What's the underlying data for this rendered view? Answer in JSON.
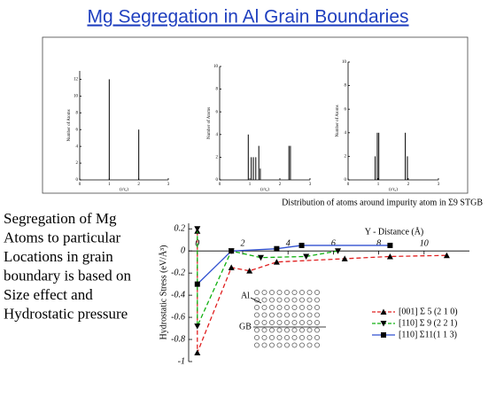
{
  "title": "Mg Segregation in Al Grain Boundaries",
  "caption": "Distribution of atoms around impurity atom in Σ9 STGB",
  "text_lines": [
    "Segregation of Mg",
    "Atoms to particular",
    "Locations in grain",
    "boundary is based on",
    "Size effect and",
    "Hydrostatic pressure"
  ],
  "inset_labels": [
    "Al",
    "GB"
  ],
  "chart_data": [
    {
      "type": "stem",
      "ylabel": "Number of Atoms",
      "xlabel": "(r/r₀)",
      "color": "#000000",
      "x": [
        1,
        2
      ],
      "values": [
        12,
        6
      ],
      "xlim": [
        0,
        3
      ],
      "xticks": [
        0,
        1,
        2,
        3
      ],
      "ylim": [
        0,
        13
      ],
      "yticks": [
        0,
        2,
        4,
        6,
        8,
        10,
        12
      ]
    },
    {
      "type": "stem",
      "ylabel": "Number of Atoms",
      "xlabel": "(r/r₀)",
      "color": "#000000",
      "x": [
        0.95,
        1.05,
        1.12,
        1.2,
        1.3,
        1.35,
        2.3,
        2.35
      ],
      "values": [
        4,
        2,
        2,
        2,
        3,
        1,
        3,
        3
      ],
      "xlim": [
        0,
        3
      ],
      "xticks": [
        0,
        1,
        2,
        3
      ],
      "ylim": [
        0,
        10
      ],
      "yticks": [
        0,
        2,
        4,
        6,
        8,
        10
      ]
    },
    {
      "type": "stem",
      "ylabel": "Number of Atoms",
      "xlabel": "(r/r₀)",
      "color": "#000000",
      "x": [
        0.9,
        0.97,
        1.02,
        1.9,
        1.97
      ],
      "values": [
        2,
        4,
        4,
        4,
        2
      ],
      "xlim": [
        0,
        3
      ],
      "xticks": [
        0,
        1,
        2,
        3
      ],
      "ylim": [
        0,
        10
      ],
      "yticks": [
        0,
        2,
        4,
        6,
        8,
        10
      ]
    },
    {
      "type": "line",
      "xlabel": "Y - Distance (Å)",
      "ylabel": "Hydrostatic Stress (eV/Å³)",
      "xlim": [
        -0.5,
        12
      ],
      "xticks": [
        0,
        2,
        4,
        6,
        8,
        10
      ],
      "ylim": [
        -1,
        0.25
      ],
      "yticks": [
        0.2,
        0,
        -0.2,
        -0.4,
        -0.6,
        -0.8,
        -1
      ],
      "series": [
        {
          "name": "[001] Σ 5 (2 1 0)",
          "color": "#e02020",
          "dash": true,
          "marker": "triangle",
          "x": [
            0,
            0,
            1.5,
            2.3,
            3.5,
            6.5,
            8.5,
            11
          ],
          "values": [
            0.18,
            -0.92,
            -0.15,
            -0.18,
            -0.1,
            -0.07,
            -0.05,
            -0.04
          ]
        },
        {
          "name": "[110] Σ 9 (2 2 1)",
          "color": "#10b010",
          "dash": true,
          "marker": "triangle-down",
          "x": [
            0,
            0,
            1.5,
            2.8,
            4.8,
            6.2
          ],
          "values": [
            0.2,
            -0.68,
            0,
            -0.06,
            -0.05,
            0
          ]
        },
        {
          "name": "[110] Σ11(1 1 3)",
          "color": "#3050d0",
          "dash": false,
          "marker": "square",
          "x": [
            0,
            1.5,
            3.5,
            4.6,
            8.5
          ],
          "values": [
            -0.3,
            0,
            0.02,
            0.05,
            0.05
          ]
        }
      ]
    }
  ]
}
